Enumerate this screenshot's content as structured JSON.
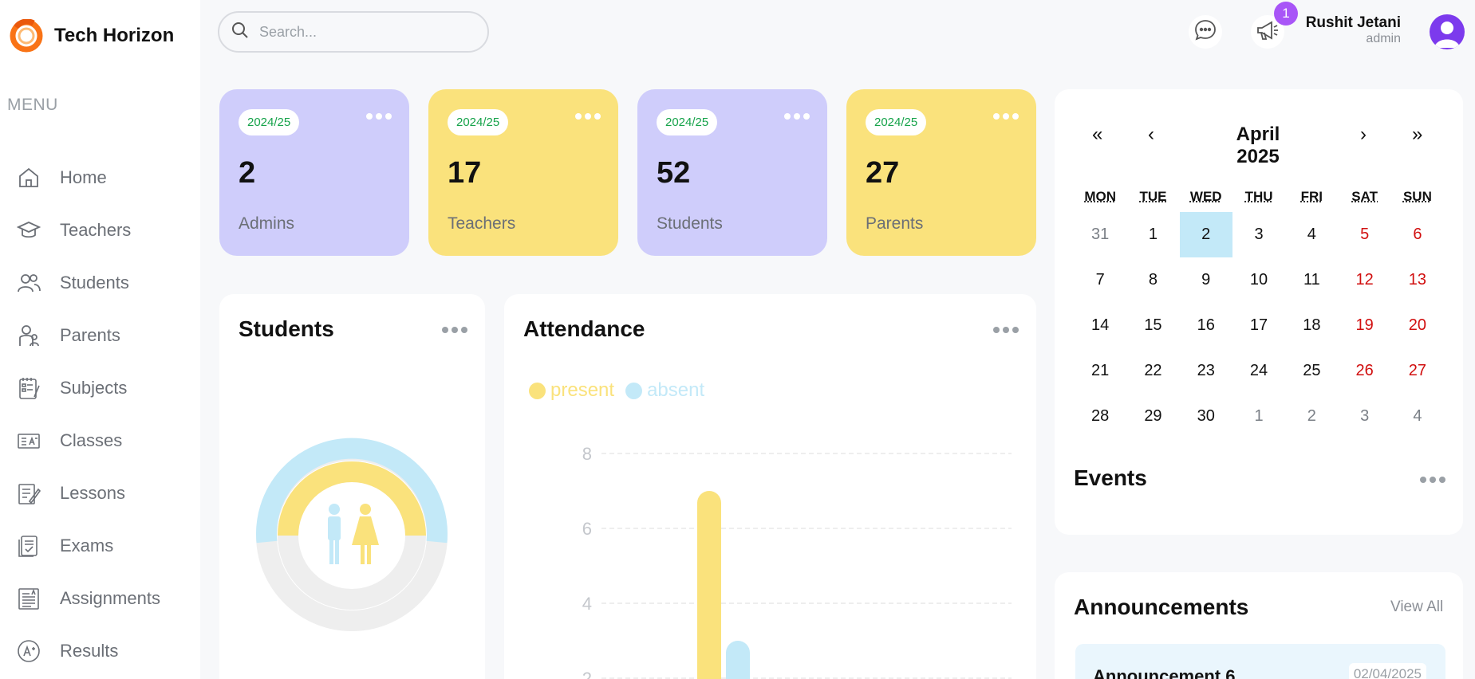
{
  "brand": {
    "name": "Tech Horizon"
  },
  "menu": {
    "title": "MENU",
    "items": [
      {
        "label": "Home",
        "icon": "home-icon"
      },
      {
        "label": "Teachers",
        "icon": "graduation-cap-icon"
      },
      {
        "label": "Students",
        "icon": "users-icon"
      },
      {
        "label": "Parents",
        "icon": "parents-icon"
      },
      {
        "label": "Subjects",
        "icon": "subjects-icon"
      },
      {
        "label": "Classes",
        "icon": "classes-icon"
      },
      {
        "label": "Lessons",
        "icon": "lessons-icon"
      },
      {
        "label": "Exams",
        "icon": "exams-icon"
      },
      {
        "label": "Assignments",
        "icon": "assignments-icon"
      },
      {
        "label": "Results",
        "icon": "results-icon"
      }
    ]
  },
  "header": {
    "search_placeholder": "Search...",
    "notification_count": "1",
    "user_name": "Rushit Jetani",
    "user_role": "admin"
  },
  "stats": [
    {
      "year": "2024/25",
      "value": "2",
      "label": "Admins",
      "color": "#cfcdfb"
    },
    {
      "year": "2024/25",
      "value": "17",
      "label": "Teachers",
      "color": "#fae27c"
    },
    {
      "year": "2024/25",
      "value": "52",
      "label": "Students",
      "color": "#cfcdfb"
    },
    {
      "year": "2024/25",
      "value": "27",
      "label": "Parents",
      "color": "#fae27c"
    }
  ],
  "students_panel": {
    "title": "Students"
  },
  "attendance_panel": {
    "title": "Attendance",
    "legend": {
      "present": "present",
      "absent": "absent"
    }
  },
  "chart_data": {
    "type": "bar",
    "series": [
      {
        "name": "present",
        "values": [
          7
        ],
        "color": "#fae27c"
      },
      {
        "name": "absent",
        "values": [
          3
        ],
        "color": "#c3e9f8"
      }
    ],
    "y_ticks": [
      "8",
      "6",
      "4",
      "2"
    ],
    "ylim": [
      0,
      8
    ],
    "grid": true,
    "legend_position": "top-left"
  },
  "calendar": {
    "month": "April 2025",
    "nav": {
      "prev_year": "«",
      "prev_month": "‹",
      "next_month": "›",
      "next_year": "»"
    },
    "weekdays": [
      "MON",
      "TUE",
      "WED",
      "THU",
      "FRI",
      "SAT",
      "SUN"
    ],
    "weeks": [
      [
        "31",
        "1",
        "2",
        "3",
        "4",
        "5",
        "6"
      ],
      [
        "7",
        "8",
        "9",
        "10",
        "11",
        "12",
        "13"
      ],
      [
        "14",
        "15",
        "16",
        "17",
        "18",
        "19",
        "20"
      ],
      [
        "21",
        "22",
        "23",
        "24",
        "25",
        "26",
        "27"
      ],
      [
        "28",
        "29",
        "30",
        "1",
        "2",
        "3",
        "4"
      ]
    ],
    "today": "2"
  },
  "events_panel": {
    "title": "Events"
  },
  "announcements": {
    "title": "Announcements",
    "view_all": "View All",
    "items": [
      {
        "title": "Announcement 6",
        "date": "02/04/2025"
      }
    ]
  },
  "colors": {
    "purple": "#cfcdfb",
    "yellow": "#fae27c",
    "sky": "#c3e9f8",
    "accent": "#a855f7"
  }
}
